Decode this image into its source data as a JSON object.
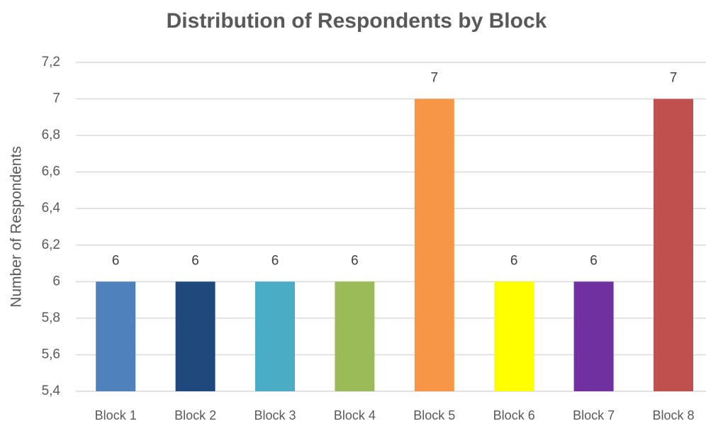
{
  "chart_data": {
    "type": "bar",
    "title": "Distribution of Respondents by Block",
    "y_label": "Number of Respondents",
    "categories": [
      "Block 1",
      "Block 2",
      "Block 3",
      "Block 4",
      "Block 5",
      "Block 6",
      "Block 7",
      "Block 8"
    ],
    "values": [
      6,
      6,
      6,
      6,
      7,
      6,
      6,
      7
    ],
    "colors": [
      "#4f81bd",
      "#1f497d",
      "#4bacc6",
      "#9bbb59",
      "#f79646",
      "#ffff00",
      "#7030a0",
      "#c0504d"
    ],
    "ylim": [
      5.4,
      7.2
    ],
    "yticks": [
      {
        "value": 5.4,
        "label": "5,4"
      },
      {
        "value": 5.6,
        "label": "5,6"
      },
      {
        "value": 5.8,
        "label": "5,8"
      },
      6,
      {
        "value": 6.2,
        "label": "6,2"
      },
      {
        "value": 6.4,
        "label": "6,4"
      },
      {
        "value": 6.6,
        "label": "6,6"
      },
      {
        "value": 6.8,
        "label": "6,8"
      },
      7,
      {
        "value": 7.2,
        "label": "7,2"
      }
    ],
    "grid": true
  }
}
